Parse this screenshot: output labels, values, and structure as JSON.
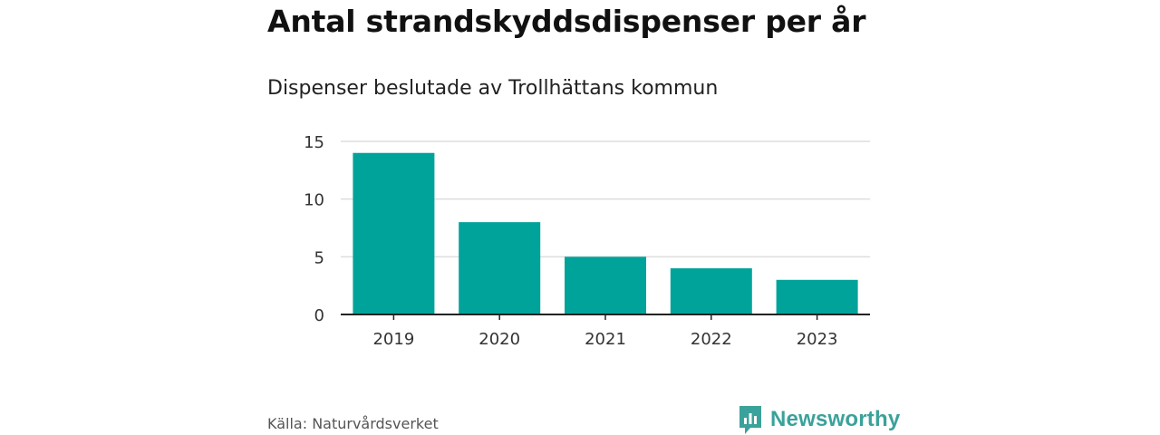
{
  "title": "Antal strandskyddsdispenser per år",
  "subtitle": "Dispenser beslutade av Trollhättans kommun",
  "source": "Källa: Naturvårdsverket",
  "brand": {
    "name": "Newsworthy",
    "logo_icon": "bar-chart-speech-bubble-icon",
    "color": "#3aa29a"
  },
  "colors": {
    "bar": "#00a39a",
    "grid": "#dddddd",
    "axis": "#222222"
  },
  "chart_data": {
    "type": "bar",
    "title": "Antal strandskyddsdispenser per år",
    "subtitle": "Dispenser beslutade av Trollhättans kommun",
    "categories": [
      "2019",
      "2020",
      "2021",
      "2022",
      "2023"
    ],
    "values": [
      14,
      8,
      5,
      4,
      3
    ],
    "xlabel": "",
    "ylabel": "",
    "ylim": [
      0,
      15
    ],
    "yticks": [
      0,
      5,
      10,
      15
    ],
    "grid": true,
    "legend": "none"
  }
}
